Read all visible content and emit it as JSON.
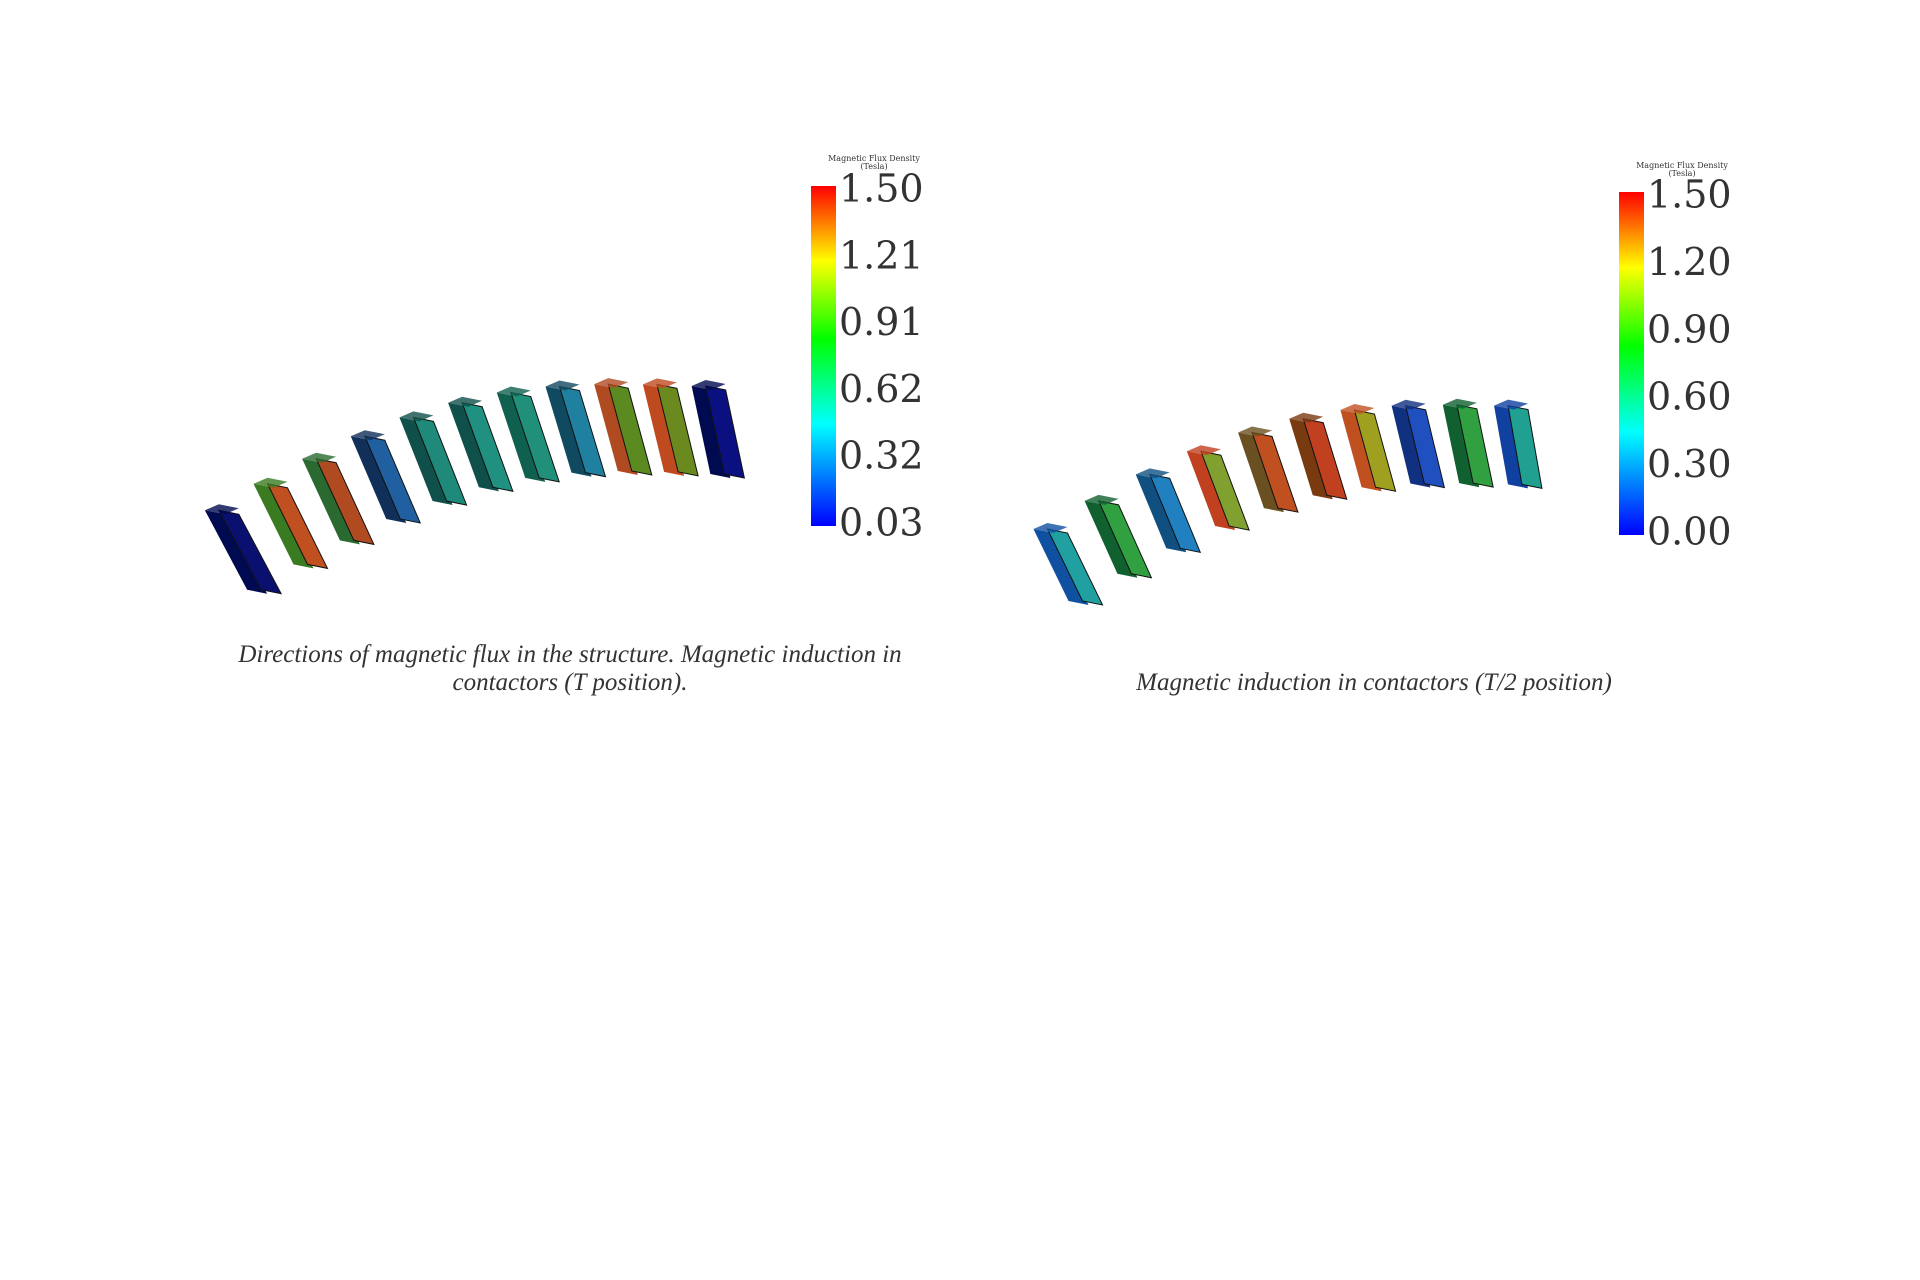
{
  "figures": [
    {
      "legend_title": [
        "Magnetic Flux Density",
        "(Tesla)"
      ],
      "legend_labels": [
        "1.50",
        "1.21",
        "0.91",
        "0.62",
        "0.32",
        "0.03"
      ],
      "caption": [
        "Directions of magnetic flux in the structure. Magnetic induction in",
        "contactors (T position)."
      ]
    },
    {
      "legend_title": [
        "Magnetic Flux Density",
        "(Tesla)"
      ],
      "legend_labels": [
        "1.50",
        "1.20",
        "0.90",
        "0.60",
        "0.30",
        "0.00"
      ],
      "caption": [
        "Magnetic induction in contactors (T/2 position)"
      ]
    }
  ]
}
